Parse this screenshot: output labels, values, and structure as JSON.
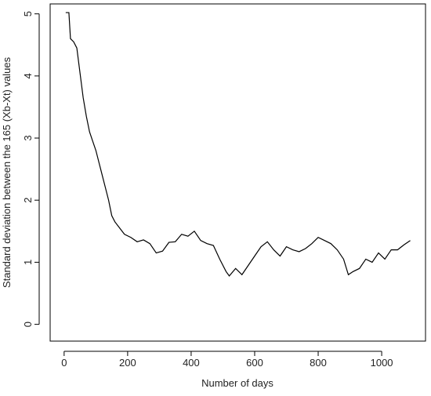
{
  "chart_data": {
    "type": "line",
    "xlabel": "Number of days",
    "ylabel": "Standard deviation between the 165 (Xb-Xt) values",
    "x": [
      5,
      15,
      20,
      30,
      40,
      50,
      60,
      70,
      80,
      90,
      100,
      110,
      120,
      130,
      140,
      150,
      160,
      175,
      190,
      210,
      230,
      250,
      270,
      290,
      310,
      330,
      350,
      370,
      390,
      410,
      430,
      450,
      470,
      490,
      510,
      520,
      540,
      560,
      580,
      600,
      620,
      640,
      660,
      680,
      700,
      720,
      740,
      760,
      780,
      800,
      820,
      840,
      860,
      880,
      895,
      910,
      930,
      950,
      970,
      990,
      1010,
      1030,
      1050,
      1070,
      1090
    ],
    "series": [
      {
        "color": "#000000",
        "values": [
          5.02,
          5.02,
          4.6,
          4.55,
          4.45,
          4.05,
          3.65,
          3.35,
          3.1,
          2.95,
          2.8,
          2.6,
          2.4,
          2.2,
          2.0,
          1.75,
          1.65,
          1.55,
          1.45,
          1.4,
          1.33,
          1.36,
          1.3,
          1.15,
          1.18,
          1.32,
          1.33,
          1.45,
          1.42,
          1.5,
          1.35,
          1.3,
          1.27,
          1.05,
          0.85,
          0.78,
          0.9,
          0.8,
          0.95,
          1.1,
          1.25,
          1.33,
          1.2,
          1.1,
          1.25,
          1.2,
          1.17,
          1.22,
          1.3,
          1.4,
          1.35,
          1.3,
          1.2,
          1.05,
          0.8,
          0.85,
          0.9,
          1.05,
          1.0,
          1.15,
          1.05,
          1.2,
          1.2,
          1.28,
          1.35
        ]
      }
    ],
    "xlim": [
      -44,
      1138
    ],
    "ylim": [
      -0.27,
      5.16
    ],
    "xticks": [
      0,
      200,
      400,
      600,
      800,
      1000
    ],
    "yticks": [
      0,
      1,
      2,
      3,
      4,
      5
    ]
  }
}
